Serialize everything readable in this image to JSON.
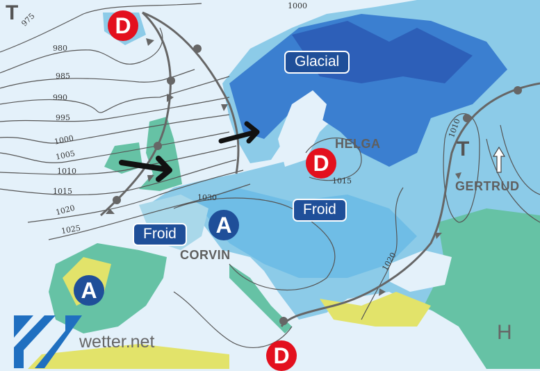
{
  "map": {
    "colors": {
      "sea": "#e4f1fa",
      "cold_light": "#a9d8ea",
      "cold": "#6fbde6",
      "cold_deep": "#3b7fd0",
      "very_cold": "#2d5fb8",
      "mild": "#66c2a5",
      "warm": "#e2e36a",
      "low": "#e3101e",
      "high": "#1f4f99",
      "front": "#666666"
    },
    "pressure_systems": [
      {
        "type": "low",
        "letter": "D",
        "name": ""
      },
      {
        "type": "low",
        "letter": "D",
        "name": "HELGA"
      },
      {
        "type": "low",
        "letter": "D",
        "name": ""
      },
      {
        "type": "high",
        "letter": "A",
        "name": "CORVIN"
      },
      {
        "type": "high",
        "letter": "A",
        "name": ""
      },
      {
        "type": "trough",
        "letter": "T",
        "name": ""
      },
      {
        "type": "trough",
        "letter": "T",
        "name": "GERTRUD"
      },
      {
        "type": "high_grey",
        "letter": "H",
        "name": ""
      }
    ],
    "labels": {
      "glacial": "Glacial",
      "froid_west": "Froid",
      "froid_east": "Froid"
    },
    "isobars": [
      "975",
      "980",
      "985",
      "990",
      "995",
      "1000",
      "1005",
      "1010",
      "1015",
      "1020",
      "1025",
      "1000",
      "1030",
      "1015",
      "1010",
      "1020"
    ],
    "wind_arrows": [
      "arrow-east-uk",
      "arrow-east-scandinavia",
      "arrow-north-russia"
    ]
  },
  "logo": {
    "text": "wetter.net"
  }
}
